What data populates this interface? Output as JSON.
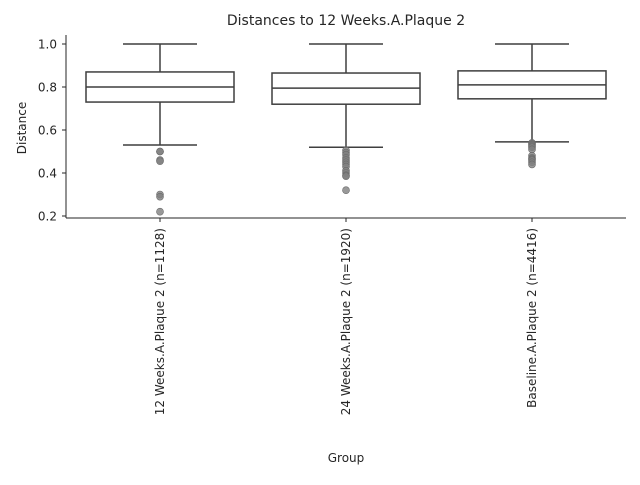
{
  "chart_data": {
    "type": "box",
    "title": "Distances to 12 Weeks.A.Plaque 2",
    "xlabel": "Group",
    "ylabel": "Distance",
    "ylim": [
      0.18,
      1.04
    ],
    "yticks": [
      "0.2",
      "0.4",
      "0.6",
      "0.8",
      "1.0"
    ],
    "ytick_values": [
      0.2,
      0.4,
      0.6,
      0.8,
      1.0
    ],
    "grid": false,
    "categories": [
      "12 Weeks.A.Plaque 2 (n=1128)",
      "24 Weeks.A.Plaque 2 (n=1920)",
      "Baseline.A.Plaque 2 (n=4416)"
    ],
    "boxes": [
      {
        "whisker_low": 0.53,
        "q1": 0.73,
        "median": 0.8,
        "q3": 0.87,
        "whisker_high": 1.0,
        "outliers": [
          0.5,
          0.5,
          0.46,
          0.455,
          0.3,
          0.29,
          0.22
        ]
      },
      {
        "whisker_low": 0.52,
        "q1": 0.72,
        "median": 0.795,
        "q3": 0.865,
        "whisker_high": 1.0,
        "outliers": [
          0.505,
          0.495,
          0.485,
          0.47,
          0.46,
          0.45,
          0.44,
          0.43,
          0.41,
          0.4,
          0.39,
          0.385,
          0.32
        ]
      },
      {
        "whisker_low": 0.545,
        "q1": 0.745,
        "median": 0.81,
        "q3": 0.875,
        "whisker_high": 1.0,
        "outliers": [
          0.54,
          0.535,
          0.53,
          0.525,
          0.52,
          0.51,
          0.48,
          0.47,
          0.465,
          0.46,
          0.45,
          0.44
        ]
      }
    ],
    "colors": {
      "box_edge": "#3f3f3f",
      "outlier": "#7f7f7f",
      "axis": "#262626"
    }
  }
}
